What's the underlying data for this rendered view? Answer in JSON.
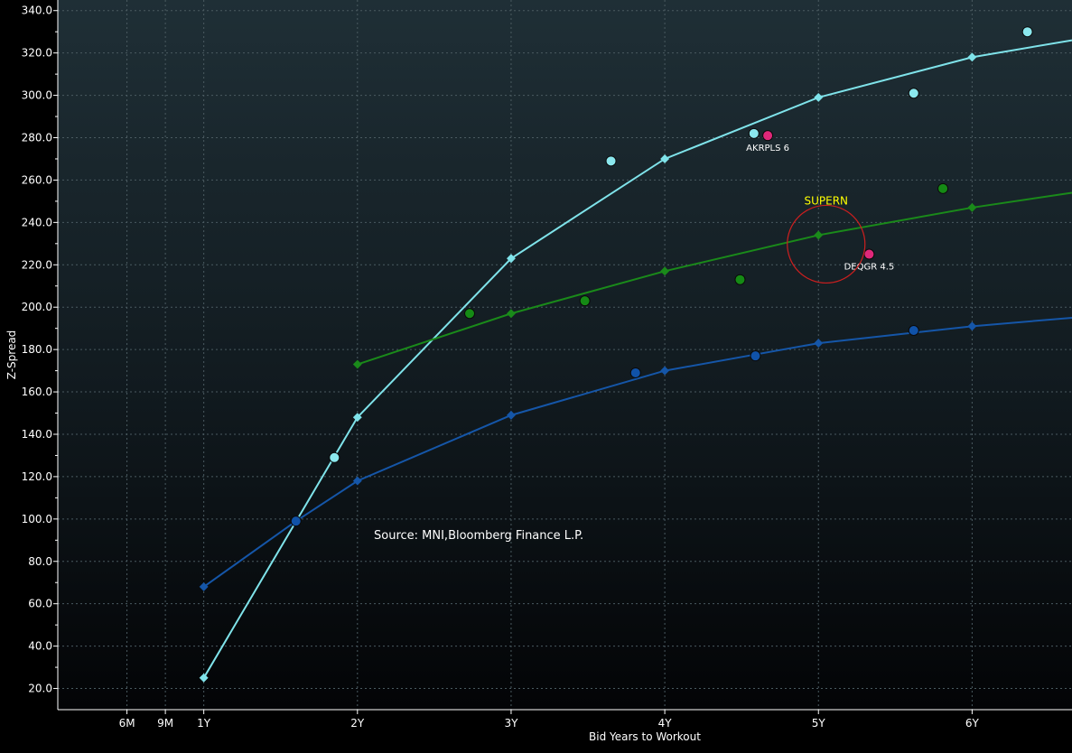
{
  "chart_data": {
    "type": "line",
    "xlabel": "Bid Years to Workout",
    "ylabel": "Z-Spread",
    "xlim": [
      0.05,
      6.65
    ],
    "ylim": [
      10,
      345
    ],
    "x_ticks": [
      {
        "x": 0.5,
        "label": "6M"
      },
      {
        "x": 0.75,
        "label": "9M"
      },
      {
        "x": 1,
        "label": "1Y"
      },
      {
        "x": 2,
        "label": "2Y"
      },
      {
        "x": 3,
        "label": "3Y"
      },
      {
        "x": 4,
        "label": "4Y"
      },
      {
        "x": 5,
        "label": "5Y"
      },
      {
        "x": 6,
        "label": "6Y"
      }
    ],
    "y_ticks": [
      20,
      40,
      60,
      80,
      100,
      120,
      140,
      160,
      180,
      200,
      220,
      240,
      260,
      280,
      300,
      320,
      340
    ],
    "y_tick_labels": [
      "20.0",
      "40.0",
      "60.0",
      "80.0",
      "100.0",
      "120.0",
      "140.0",
      "160.0",
      "180.0",
      "200.0",
      "220.0",
      "240.0",
      "260.0",
      "280.0",
      "300.0",
      "320.0",
      "340.0"
    ],
    "grid": true,
    "source_text": "Source: MNI,Bloomberg Finance L.P.",
    "series": [
      {
        "name": "curve-cyan",
        "color": "#7fe3ea",
        "x": [
          1,
          2,
          3,
          4,
          5,
          6,
          6.65
        ],
        "y": [
          25,
          148,
          223,
          270,
          299,
          318,
          326
        ]
      },
      {
        "name": "curve-green",
        "color": "#1a8a1a",
        "x": [
          2,
          3,
          4,
          5,
          6,
          6.65
        ],
        "y": [
          173,
          197,
          217,
          234,
          247,
          254
        ]
      },
      {
        "name": "curve-blue",
        "color": "#1556a8",
        "x": [
          1,
          1.6,
          2,
          3,
          4,
          5,
          6,
          6.65
        ],
        "y": [
          68,
          99,
          118,
          149,
          170,
          183,
          191,
          195
        ]
      }
    ],
    "scatter": [
      {
        "name": "cyan-bond",
        "color": "#8be8ee",
        "points": [
          [
            1.85,
            129
          ],
          [
            3.65,
            269
          ],
          [
            4.58,
            282
          ],
          [
            5.62,
            301
          ],
          [
            6.36,
            330
          ]
        ]
      },
      {
        "name": "green-bond",
        "color": "#158a15",
        "points": [
          [
            2.73,
            197
          ],
          [
            3.48,
            203
          ],
          [
            4.49,
            213
          ],
          [
            5.81,
            256
          ]
        ]
      },
      {
        "name": "blue-bond",
        "color": "#1052a8",
        "points": [
          [
            1.6,
            99
          ],
          [
            3.81,
            169
          ],
          [
            4.59,
            177
          ],
          [
            5.62,
            189
          ]
        ]
      },
      {
        "name": "pink-bond",
        "color": "#e0287a",
        "points": [
          [
            4.67,
            281
          ],
          [
            5.33,
            225
          ]
        ]
      }
    ],
    "annotations": [
      {
        "text": "AKRPLS 6",
        "x": 4.67,
        "y": 281
      },
      {
        "text": "DEQGR 4.5",
        "x": 5.33,
        "y": 225
      }
    ],
    "highlight": {
      "label": "SUPERN",
      "x": 5.05,
      "y": 234,
      "color": "#cc1f1f"
    }
  }
}
